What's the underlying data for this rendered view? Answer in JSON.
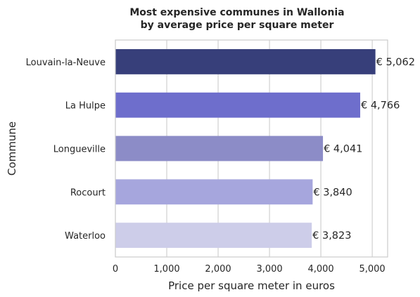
{
  "chart_data": {
    "type": "bar",
    "orientation": "horizontal",
    "title": "Most expensive communes in Wallonia\nby average price per square meter",
    "xlabel": "Price  per square meter in euros",
    "ylabel": "Commune",
    "categories": [
      "Louvain-la-Neuve",
      "La Hulpe",
      "Longueville",
      "Rocourt",
      "Waterloo"
    ],
    "values": [
      5062,
      4766,
      4041,
      3840,
      3823
    ],
    "data_labels": [
      "€ 5,062",
      "€ 4,766",
      "€ 4,041",
      "€ 3,840",
      "€ 3,823"
    ],
    "colors": [
      "#373f7a",
      "#6e6ecc",
      "#8c8cc7",
      "#a6a6dd",
      "#cdcde9"
    ],
    "xlim": [
      0,
      5300
    ],
    "xticks": [
      0,
      1000,
      2000,
      3000,
      4000,
      5000
    ],
    "xtick_labels": [
      "0",
      "1,000",
      "2,000",
      "3,000",
      "4,000",
      "5,000"
    ],
    "grid": "vertical",
    "legend": "none"
  }
}
